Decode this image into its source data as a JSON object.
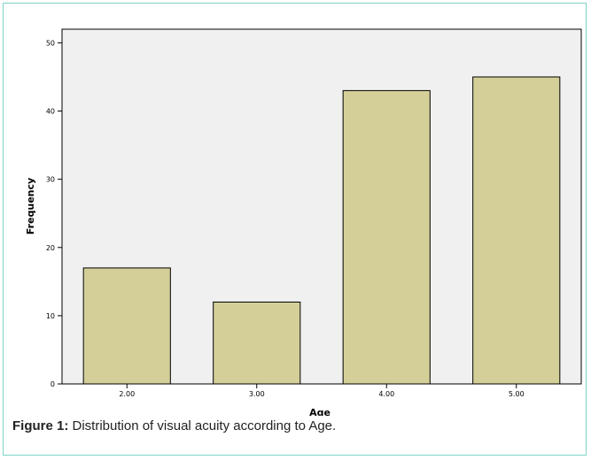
{
  "caption": {
    "label": "Figure 1:",
    "text": "Distribution of visual acuity according to Age."
  },
  "chart_data": {
    "type": "bar",
    "categories": [
      "2.00",
      "3.00",
      "4.00",
      "5.00"
    ],
    "values": [
      17,
      12,
      43,
      45
    ],
    "xlabel": "Age",
    "ylabel": "Frequency",
    "ylim": [
      0,
      52
    ],
    "yticks": [
      0,
      10,
      20,
      30,
      40,
      50
    ],
    "grid": false,
    "bar_color": "#d4cf98",
    "plot_background": "#f0f0f0"
  }
}
